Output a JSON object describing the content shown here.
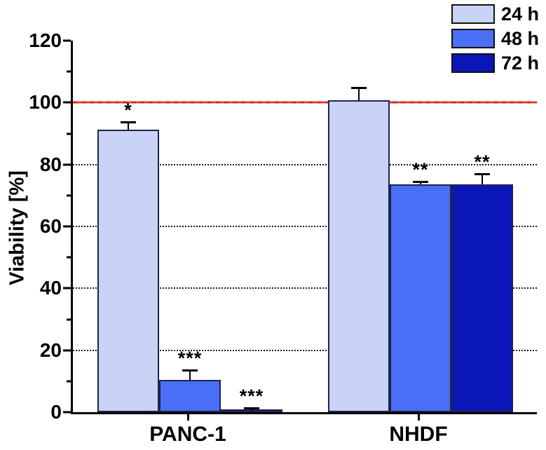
{
  "chart_data": {
    "type": "bar",
    "title": "",
    "xlabel": "",
    "ylabel": "Viability [%]",
    "ylim": [
      0,
      120
    ],
    "yticks": [
      0,
      20,
      40,
      60,
      80,
      100,
      120
    ],
    "yticks_minor": [
      10,
      30,
      50,
      70,
      90,
      110
    ],
    "gridlines": [
      20,
      40,
      60,
      80
    ],
    "grid_style": "dotted",
    "reference_line": {
      "value": 100,
      "color": "#e8312a"
    },
    "legend_position": "top-right",
    "categories": [
      "PANC-1",
      "NHDF"
    ],
    "series": [
      {
        "name": "24 h",
        "color": "#c9d3f6",
        "values": [
          91.2,
          100.8
        ],
        "errors": [
          2.6,
          4.0
        ],
        "significance": [
          "*",
          ""
        ]
      },
      {
        "name": "48 h",
        "color": "#4a6ef5",
        "values": [
          10.4,
          73.6
        ],
        "errors": [
          3.1,
          1.0
        ],
        "significance": [
          "***",
          "**"
        ]
      },
      {
        "name": "72 h",
        "color": "#0a16b8",
        "values": [
          0.5,
          73.6
        ],
        "errors": [
          0.8,
          3.4
        ],
        "significance": [
          "***",
          "**"
        ]
      }
    ]
  }
}
